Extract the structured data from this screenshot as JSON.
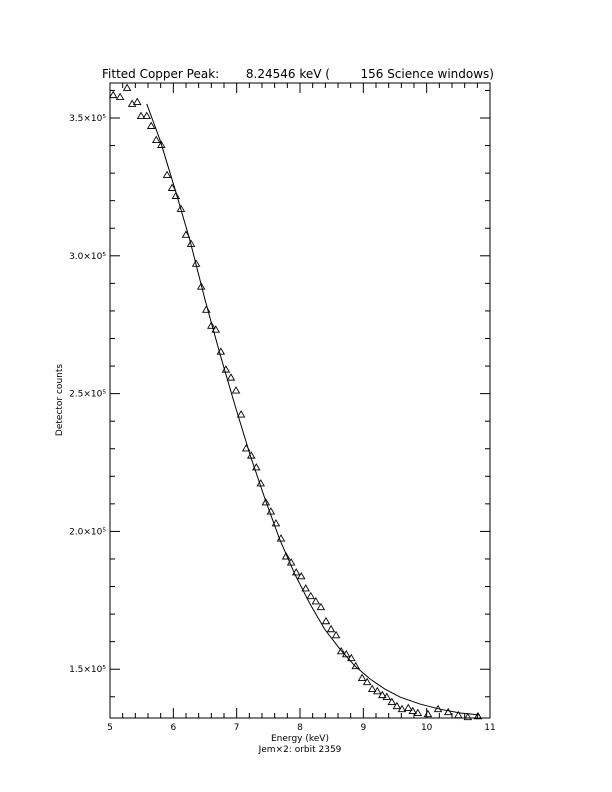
{
  "chart_data": {
    "type": "scatter",
    "title": "Fitted Copper Peak:       8.24546 keV (        156 Science windows)",
    "x_label": "Energy (keV)",
    "subtitle": "Jem×2: orbit 2359",
    "y_label": "Detector counts",
    "xlim": [
      5,
      11
    ],
    "xticks": [
      5,
      6,
      7,
      8,
      9,
      10,
      11
    ],
    "ylim": [
      132300,
      362700
    ],
    "yticks": [
      {
        "value": 150000,
        "label": "1.5×10⁵"
      },
      {
        "value": 200000,
        "label": "2.0×10⁵"
      },
      {
        "value": 250000,
        "label": "2.5×10⁵"
      },
      {
        "value": 300000,
        "label": "3.0×10⁵"
      },
      {
        "value": 350000,
        "label": "3.5×10⁵"
      }
    ],
    "minor_divisions": 5,
    "series": [
      {
        "type": "scatter",
        "marker": "triangle",
        "color": "#000000",
        "x": [
          5.05,
          5.16,
          5.27,
          5.35,
          5.43,
          5.49,
          5.58,
          5.65,
          5.73,
          5.81,
          5.9,
          5.98,
          6.04,
          6.12,
          6.2,
          6.28,
          6.36,
          6.44,
          6.52,
          6.6,
          6.67,
          6.75,
          6.83,
          6.91,
          6.99,
          7.07,
          7.15,
          7.23,
          7.31,
          7.38,
          7.46,
          7.54,
          7.62,
          7.7,
          7.78,
          7.86,
          7.94,
          8.02,
          8.09,
          8.17,
          8.25,
          8.33,
          8.41,
          8.49,
          8.57,
          8.65,
          8.73,
          8.81,
          8.88,
          8.98,
          9.06,
          9.14,
          9.22,
          9.3,
          9.37,
          9.45,
          9.53,
          9.61,
          9.71,
          9.78,
          9.86,
          10.02,
          10.18,
          10.34,
          10.5,
          10.65,
          10.81
        ],
        "values": [
          358300,
          357600,
          360900,
          355100,
          355800,
          350700,
          350700,
          347100,
          342000,
          340200,
          329300,
          324600,
          321700,
          317000,
          307600,
          304300,
          297100,
          288800,
          280400,
          274600,
          273200,
          265200,
          258700,
          255800,
          251100,
          242400,
          230100,
          227500,
          223200,
          217400,
          210500,
          207200,
          202900,
          197400,
          190900,
          188700,
          185100,
          183700,
          179300,
          176500,
          174600,
          172500,
          167400,
          164500,
          162300,
          156500,
          155400,
          154000,
          151100,
          146800,
          145300,
          142800,
          142000,
          140600,
          139900,
          138100,
          136600,
          135500,
          135900,
          134800,
          134100,
          133700,
          135500,
          134400,
          133300,
          132600,
          132900
        ]
      },
      {
        "type": "line",
        "color": "#000000",
        "x": [
          5.58,
          5.79,
          6.03,
          6.26,
          6.5,
          6.74,
          6.97,
          7.21,
          7.45,
          7.68,
          7.92,
          8.16,
          8.39,
          8.63,
          8.87,
          9.11,
          9.34,
          9.58,
          9.89,
          10.21,
          10.53,
          10.84
        ],
        "values": [
          355100,
          342000,
          323900,
          305800,
          284100,
          264100,
          246000,
          227900,
          211600,
          197100,
          184400,
          173600,
          164500,
          157300,
          151100,
          146400,
          142800,
          139900,
          137400,
          135500,
          134100,
          133400
        ]
      }
    ]
  }
}
